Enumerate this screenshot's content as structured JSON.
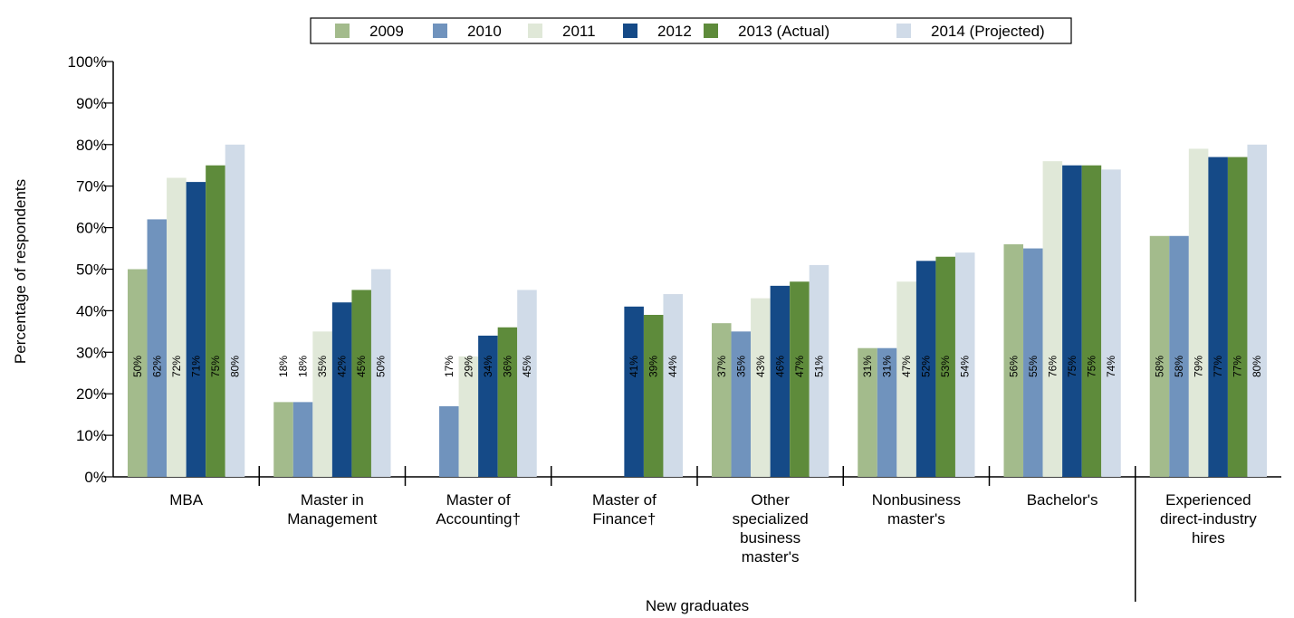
{
  "chart_data": {
    "type": "bar",
    "xlabel": "New graduates",
    "ylabel": "Percentage of respondents",
    "categories": [
      "MBA",
      "Master in Management",
      "Master of Accounting†",
      "Master of Finance†",
      "Other specialized business master's",
      "Nonbusiness master's",
      "Bachelor's",
      "Experienced direct-industry hires"
    ],
    "series": [
      {
        "name": "2009",
        "color": "#a3bb8c",
        "values": [
          50,
          18,
          null,
          null,
          37,
          31,
          56,
          58
        ],
        "value_labels": [
          "50%",
          "18%",
          null,
          null,
          "37%",
          "31%",
          "56%",
          "58%"
        ]
      },
      {
        "name": "2010",
        "color": "#7093bd",
        "values": [
          62,
          18,
          17,
          null,
          35,
          31,
          55,
          58
        ],
        "value_labels": [
          "62%",
          "18%",
          "17%",
          null,
          "35%",
          "31%",
          "55%",
          "58%"
        ]
      },
      {
        "name": "2011",
        "color": "#e0e8d8",
        "values": [
          72,
          35,
          29,
          null,
          43,
          47,
          76,
          79
        ],
        "value_labels": [
          "72%",
          "35%",
          "29%",
          null,
          "43%",
          "47%",
          "76%",
          "79%"
        ]
      },
      {
        "name": "2012",
        "color": "#154a87",
        "values": [
          71,
          42,
          34,
          41,
          46,
          52,
          75,
          77
        ],
        "value_labels": [
          "71%",
          "42%",
          "34%",
          "41%",
          "46%",
          "52%",
          "75%",
          "77%"
        ]
      },
      {
        "name": "2013 (Actual)",
        "color": "#5e8b3b",
        "values": [
          75,
          45,
          36,
          39,
          47,
          53,
          75,
          77
        ],
        "value_labels": [
          "75%",
          "45%",
          "36%",
          "39%",
          "47%",
          "53%",
          "75%",
          "77%"
        ]
      },
      {
        "name": "2014 (Projected)",
        "color": "#d0dbe8",
        "values": [
          80,
          50,
          45,
          44,
          51,
          54,
          74,
          80
        ],
        "value_labels": [
          "80%",
          "50%",
          "45%",
          "44%",
          "51%",
          "54%",
          "74%",
          "80%"
        ]
      }
    ],
    "ylim": [
      0,
      100
    ],
    "yticks": [
      {
        "value": 0,
        "label": "0%"
      },
      {
        "value": 10,
        "label": "10%"
      },
      {
        "value": 20,
        "label": "20%"
      },
      {
        "value": 30,
        "label": "30%"
      },
      {
        "value": 40,
        "label": "40%"
      },
      {
        "value": 50,
        "label": "50%"
      },
      {
        "value": 60,
        "label": "60%"
      },
      {
        "value": 70,
        "label": "70%"
      },
      {
        "value": 80,
        "label": "80%"
      },
      {
        "value": 90,
        "label": "90%"
      },
      {
        "value": 100,
        "label": "100%"
      }
    ],
    "legend": "top"
  }
}
